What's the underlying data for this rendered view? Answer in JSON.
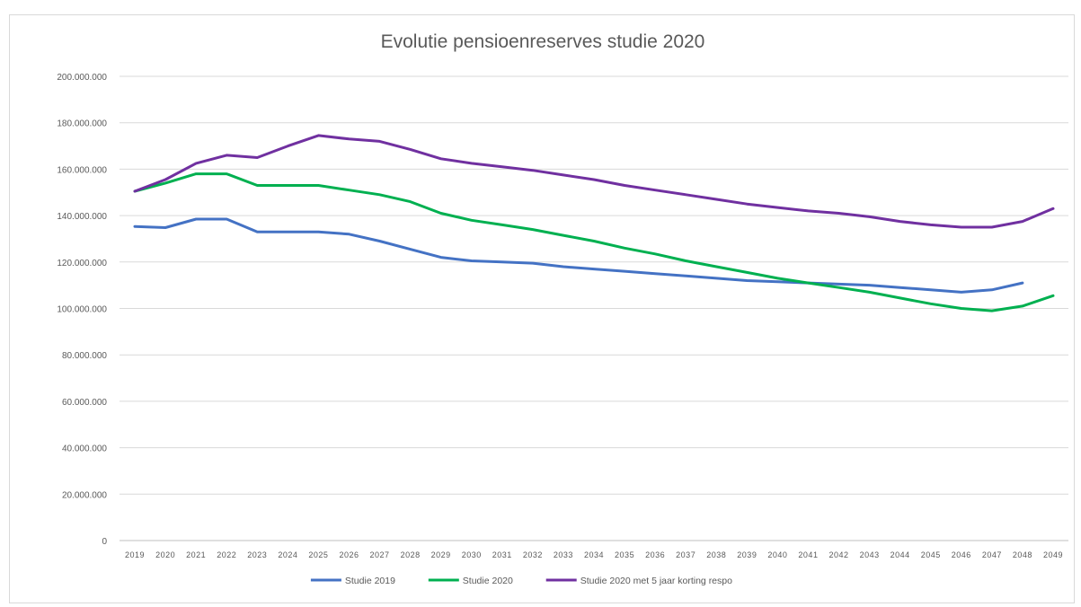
{
  "chart_data": {
    "type": "line",
    "title": "Evolutie pensioenreserves studie 2020",
    "xlabel": "",
    "ylabel": "",
    "ylim": [
      0,
      200000000
    ],
    "y_ticks": [
      0,
      20000000,
      40000000,
      60000000,
      80000000,
      100000000,
      120000000,
      140000000,
      160000000,
      180000000,
      200000000
    ],
    "y_tick_labels": [
      "0",
      "20.000.000",
      "40.000.000",
      "60.000.000",
      "80.000.000",
      "100.000.000",
      "120.000.000",
      "140.000.000",
      "160.000.000",
      "180.000.000",
      "200.000.000"
    ],
    "categories": [
      "2019",
      "2020",
      "2021",
      "2022",
      "2023",
      "2024",
      "2025",
      "2026",
      "2027",
      "2028",
      "2029",
      "2030",
      "2031",
      "2032",
      "2033",
      "2034",
      "2035",
      "2036",
      "2037",
      "2038",
      "2039",
      "2040",
      "2041",
      "2042",
      "2043",
      "2044",
      "2045",
      "2046",
      "2047",
      "2048",
      "2049"
    ],
    "grid": true,
    "legend_position": "bottom",
    "series": [
      {
        "name": "Studie 2019",
        "color": "#4472c4",
        "values": [
          135300000,
          134800000,
          138500000,
          138500000,
          133000000,
          133000000,
          133000000,
          132000000,
          129000000,
          125500000,
          122000000,
          120500000,
          120000000,
          119500000,
          118000000,
          117000000,
          116000000,
          115000000,
          114000000,
          113000000,
          112000000,
          111500000,
          111000000,
          110500000,
          110000000,
          109000000,
          108000000,
          107000000,
          108000000,
          111000000,
          null
        ]
      },
      {
        "name": "Studie 2020",
        "color": "#00b050",
        "values": [
          150500000,
          154000000,
          158000000,
          158000000,
          153000000,
          153000000,
          153000000,
          151000000,
          149000000,
          146000000,
          141000000,
          138000000,
          136000000,
          134000000,
          131500000,
          129000000,
          126000000,
          123500000,
          120500000,
          118000000,
          115500000,
          113000000,
          111000000,
          109000000,
          107000000,
          104500000,
          102000000,
          100000000,
          99000000,
          101000000,
          105500000
        ]
      },
      {
        "name": "Studie 2020 met 5 jaar korting respo",
        "color": "#7030a0",
        "values": [
          150500000,
          155500000,
          162500000,
          166000000,
          165000000,
          170000000,
          174500000,
          173000000,
          172000000,
          168500000,
          164500000,
          162500000,
          161000000,
          159500000,
          157500000,
          155500000,
          153000000,
          151000000,
          149000000,
          147000000,
          145000000,
          143500000,
          142000000,
          141000000,
          139500000,
          137500000,
          136000000,
          135000000,
          135000000,
          137500000,
          143000000
        ]
      }
    ]
  }
}
